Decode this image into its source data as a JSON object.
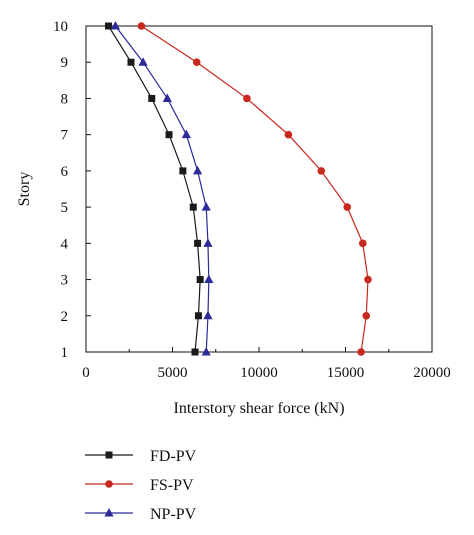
{
  "chart_data": {
    "type": "line",
    "xlabel": "Interstory shear force (kN)",
    "ylabel": "Story",
    "xlim": [
      0,
      20000
    ],
    "ylim": [
      1,
      10
    ],
    "xticks": [
      0,
      5000,
      10000,
      15000,
      20000
    ],
    "yticks": [
      1,
      2,
      3,
      4,
      5,
      6,
      7,
      8,
      9,
      10
    ],
    "grid": false,
    "legend_position": "bottom-left",
    "series": [
      {
        "name": "FD-PV",
        "color": "#1a1a1a",
        "marker": "square",
        "x": [
          6300,
          6500,
          6600,
          6450,
          6200,
          5600,
          4800,
          3800,
          2600,
          1300
        ],
        "y": [
          1,
          2,
          3,
          4,
          5,
          6,
          7,
          8,
          9,
          10
        ]
      },
      {
        "name": "FS-PV",
        "color": "#c8281e",
        "marker": "circle",
        "x": [
          15900,
          16200,
          16300,
          16000,
          15100,
          13600,
          11700,
          9300,
          6400,
          3200
        ],
        "y": [
          1,
          2,
          3,
          4,
          5,
          6,
          7,
          8,
          9,
          10
        ]
      },
      {
        "name": "NP-PV",
        "color": "#2b2b9a",
        "marker": "triangle",
        "x": [
          6950,
          7050,
          7100,
          7050,
          6950,
          6450,
          5800,
          4700,
          3300,
          1700
        ],
        "y": [
          1,
          2,
          3,
          4,
          5,
          6,
          7,
          8,
          9,
          10
        ]
      }
    ]
  }
}
